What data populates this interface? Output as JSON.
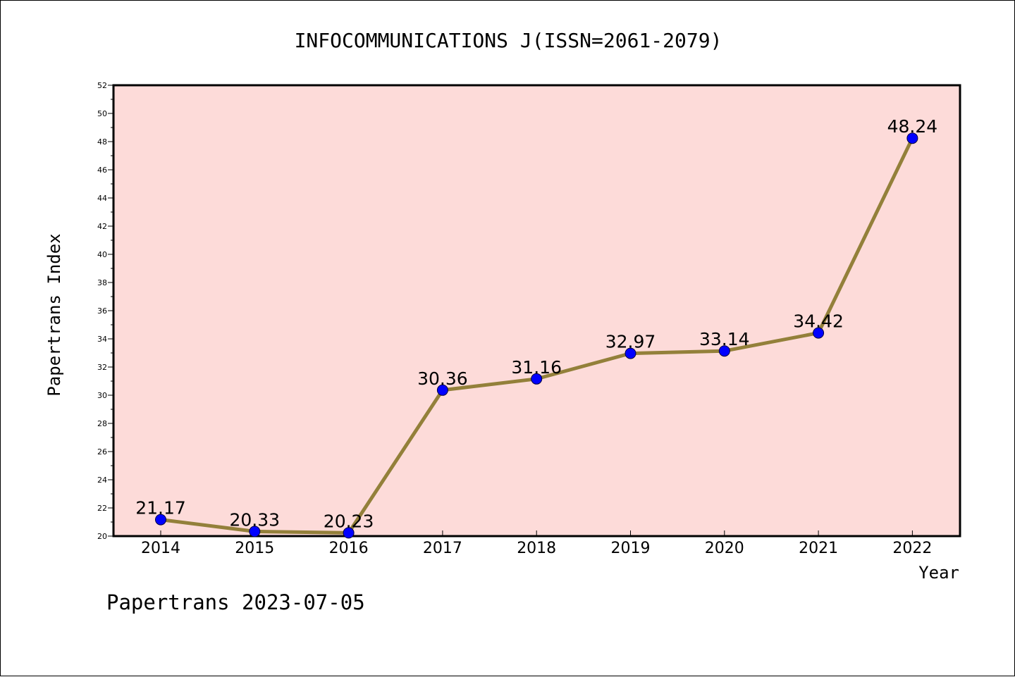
{
  "chart_data": {
    "type": "line",
    "title": "INFOCOMMUNICATIONS J(ISSN=2061-2079)",
    "xlabel": "Year",
    "ylabel": "Papertrans Index",
    "categories": [
      "2014",
      "2015",
      "2016",
      "2017",
      "2018",
      "2019",
      "2020",
      "2021",
      "2022"
    ],
    "values": [
      21.17,
      20.33,
      20.23,
      30.36,
      31.16,
      32.97,
      33.14,
      34.42,
      48.24
    ],
    "data_labels": [
      "21.17",
      "20.33",
      "20.23",
      "30.36",
      "31.16",
      "32.97",
      "33.14",
      "34.42",
      "48.24"
    ],
    "ylim": [
      20,
      52
    ],
    "yticks": [
      "20",
      "22",
      "24",
      "26",
      "28",
      "30",
      "32",
      "34",
      "36",
      "38",
      "40",
      "42",
      "44",
      "46",
      "48",
      "50",
      "52"
    ],
    "grid": false,
    "footer": "Papertrans 2023-07-05",
    "colors": {
      "plot_background": "#fddbd9",
      "line": "#93803a",
      "marker": "#0000ff"
    }
  }
}
